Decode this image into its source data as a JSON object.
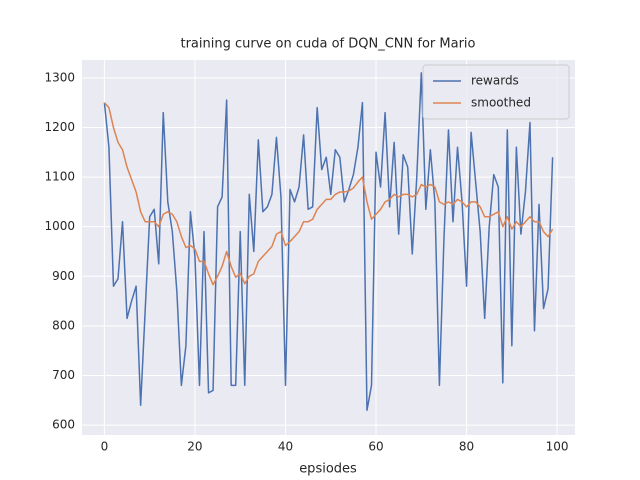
{
  "chart_data": {
    "type": "line",
    "title": "training curve on cuda of DQN_CNN for Mario",
    "xlabel": "epsiodes",
    "x": [
      0,
      1,
      2,
      3,
      4,
      5,
      6,
      7,
      8,
      9,
      10,
      11,
      12,
      13,
      14,
      15,
      16,
      17,
      18,
      19,
      20,
      21,
      22,
      23,
      24,
      25,
      26,
      27,
      28,
      29,
      30,
      31,
      32,
      33,
      34,
      35,
      36,
      37,
      38,
      39,
      40,
      41,
      42,
      43,
      44,
      45,
      46,
      47,
      48,
      49,
      50,
      51,
      52,
      53,
      54,
      55,
      56,
      57,
      58,
      59,
      60,
      61,
      62,
      63,
      64,
      65,
      66,
      67,
      68,
      69,
      70,
      71,
      72,
      73,
      74,
      75,
      76,
      77,
      78,
      79,
      80,
      81,
      82,
      83,
      84,
      85,
      86,
      87,
      88,
      89,
      90,
      91,
      92,
      93,
      94,
      95,
      96,
      97,
      98,
      99
    ],
    "series": [
      {
        "name": "rewards",
        "color": "#4c72b0",
        "values": [
          1250,
          1160,
          880,
          895,
          1010,
          815,
          850,
          880,
          640,
          830,
          1020,
          1035,
          925,
          1230,
          1050,
          990,
          870,
          680,
          760,
          1030,
          940,
          680,
          990,
          665,
          670,
          1040,
          1060,
          1255,
          680,
          680,
          990,
          680,
          1065,
          950,
          1175,
          1030,
          1040,
          1065,
          1180,
          1060,
          680,
          1075,
          1050,
          1080,
          1185,
          1035,
          1040,
          1240,
          1115,
          1140,
          1065,
          1155,
          1140,
          1050,
          1075,
          1105,
          1160,
          1250,
          630,
          680,
          1150,
          1080,
          1230,
          1040,
          1170,
          985,
          1145,
          1120,
          945,
          1100,
          1310,
          1035,
          1155,
          1050,
          680,
          975,
          1195,
          1010,
          1160,
          1050,
          880,
          1190,
          1090,
          990,
          815,
          1000,
          1105,
          1080,
          685,
          1195,
          760,
          1160,
          985,
          1070,
          1210,
          790,
          1045,
          835,
          875,
          1140
        ]
      },
      {
        "name": "smoothed",
        "color": "#dd8452",
        "values": [
          1250,
          1240,
          1200,
          1170,
          1155,
          1120,
          1095,
          1070,
          1030,
          1010,
          1010,
          1010,
          1000,
          1025,
          1030,
          1025,
          1010,
          980,
          958,
          962,
          955,
          930,
          930,
          905,
          883,
          900,
          920,
          950,
          920,
          898,
          906,
          885,
          900,
          905,
          930,
          940,
          950,
          960,
          985,
          990,
          962,
          970,
          980,
          990,
          1010,
          1010,
          1015,
          1035,
          1045,
          1055,
          1055,
          1065,
          1070,
          1070,
          1072,
          1078,
          1090,
          1100,
          1050,
          1015,
          1025,
          1035,
          1050,
          1055,
          1065,
          1060,
          1065,
          1065,
          1060,
          1065,
          1085,
          1080,
          1085,
          1080,
          1050,
          1045,
          1050,
          1045,
          1055,
          1050,
          1040,
          1050,
          1050,
          1040,
          1020,
          1020,
          1025,
          1030,
          1000,
          1020,
          995,
          1010,
          1000,
          1010,
          1020,
          1010,
          1010,
          990,
          980,
          995
        ]
      }
    ],
    "xlim": [
      -4.95,
      103.95
    ],
    "ylim": [
      580,
      1336
    ],
    "xticks": [
      0,
      20,
      40,
      60,
      80,
      100
    ],
    "yticks": [
      600,
      700,
      800,
      900,
      1000,
      1100,
      1200,
      1300
    ],
    "grid": true,
    "legend": "upper right"
  }
}
